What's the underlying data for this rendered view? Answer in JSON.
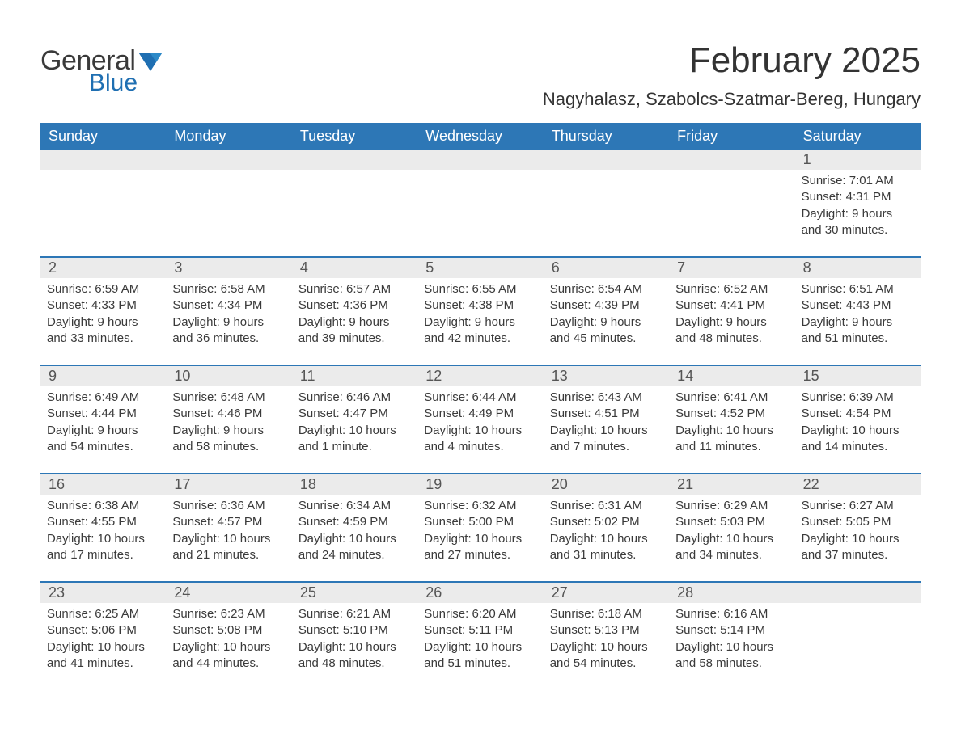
{
  "logo": {
    "text_general": "General",
    "text_blue": "Blue",
    "flag_color": "#1f6fb2"
  },
  "title": {
    "month": "February 2025",
    "location": "Nagyhalasz, Szabolcs-Szatmar-Bereg, Hungary"
  },
  "colors": {
    "header_bg": "#2d77b6",
    "header_text": "#ffffff",
    "daynum_bg": "#ebebeb",
    "sep": "#2d77b6",
    "body_text": "#3a3a3a"
  },
  "weekdays": [
    "Sunday",
    "Monday",
    "Tuesday",
    "Wednesday",
    "Thursday",
    "Friday",
    "Saturday"
  ],
  "weeks": [
    {
      "days": [
        null,
        null,
        null,
        null,
        null,
        null,
        {
          "n": "1",
          "sunrise": "Sunrise: 7:01 AM",
          "sunset": "Sunset: 4:31 PM",
          "dl1": "Daylight: 9 hours",
          "dl2": "and 30 minutes."
        }
      ]
    },
    {
      "days": [
        {
          "n": "2",
          "sunrise": "Sunrise: 6:59 AM",
          "sunset": "Sunset: 4:33 PM",
          "dl1": "Daylight: 9 hours",
          "dl2": "and 33 minutes."
        },
        {
          "n": "3",
          "sunrise": "Sunrise: 6:58 AM",
          "sunset": "Sunset: 4:34 PM",
          "dl1": "Daylight: 9 hours",
          "dl2": "and 36 minutes."
        },
        {
          "n": "4",
          "sunrise": "Sunrise: 6:57 AM",
          "sunset": "Sunset: 4:36 PM",
          "dl1": "Daylight: 9 hours",
          "dl2": "and 39 minutes."
        },
        {
          "n": "5",
          "sunrise": "Sunrise: 6:55 AM",
          "sunset": "Sunset: 4:38 PM",
          "dl1": "Daylight: 9 hours",
          "dl2": "and 42 minutes."
        },
        {
          "n": "6",
          "sunrise": "Sunrise: 6:54 AM",
          "sunset": "Sunset: 4:39 PM",
          "dl1": "Daylight: 9 hours",
          "dl2": "and 45 minutes."
        },
        {
          "n": "7",
          "sunrise": "Sunrise: 6:52 AM",
          "sunset": "Sunset: 4:41 PM",
          "dl1": "Daylight: 9 hours",
          "dl2": "and 48 minutes."
        },
        {
          "n": "8",
          "sunrise": "Sunrise: 6:51 AM",
          "sunset": "Sunset: 4:43 PM",
          "dl1": "Daylight: 9 hours",
          "dl2": "and 51 minutes."
        }
      ]
    },
    {
      "days": [
        {
          "n": "9",
          "sunrise": "Sunrise: 6:49 AM",
          "sunset": "Sunset: 4:44 PM",
          "dl1": "Daylight: 9 hours",
          "dl2": "and 54 minutes."
        },
        {
          "n": "10",
          "sunrise": "Sunrise: 6:48 AM",
          "sunset": "Sunset: 4:46 PM",
          "dl1": "Daylight: 9 hours",
          "dl2": "and 58 minutes."
        },
        {
          "n": "11",
          "sunrise": "Sunrise: 6:46 AM",
          "sunset": "Sunset: 4:47 PM",
          "dl1": "Daylight: 10 hours",
          "dl2": "and 1 minute."
        },
        {
          "n": "12",
          "sunrise": "Sunrise: 6:44 AM",
          "sunset": "Sunset: 4:49 PM",
          "dl1": "Daylight: 10 hours",
          "dl2": "and 4 minutes."
        },
        {
          "n": "13",
          "sunrise": "Sunrise: 6:43 AM",
          "sunset": "Sunset: 4:51 PM",
          "dl1": "Daylight: 10 hours",
          "dl2": "and 7 minutes."
        },
        {
          "n": "14",
          "sunrise": "Sunrise: 6:41 AM",
          "sunset": "Sunset: 4:52 PM",
          "dl1": "Daylight: 10 hours",
          "dl2": "and 11 minutes."
        },
        {
          "n": "15",
          "sunrise": "Sunrise: 6:39 AM",
          "sunset": "Sunset: 4:54 PM",
          "dl1": "Daylight: 10 hours",
          "dl2": "and 14 minutes."
        }
      ]
    },
    {
      "days": [
        {
          "n": "16",
          "sunrise": "Sunrise: 6:38 AM",
          "sunset": "Sunset: 4:55 PM",
          "dl1": "Daylight: 10 hours",
          "dl2": "and 17 minutes."
        },
        {
          "n": "17",
          "sunrise": "Sunrise: 6:36 AM",
          "sunset": "Sunset: 4:57 PM",
          "dl1": "Daylight: 10 hours",
          "dl2": "and 21 minutes."
        },
        {
          "n": "18",
          "sunrise": "Sunrise: 6:34 AM",
          "sunset": "Sunset: 4:59 PM",
          "dl1": "Daylight: 10 hours",
          "dl2": "and 24 minutes."
        },
        {
          "n": "19",
          "sunrise": "Sunrise: 6:32 AM",
          "sunset": "Sunset: 5:00 PM",
          "dl1": "Daylight: 10 hours",
          "dl2": "and 27 minutes."
        },
        {
          "n": "20",
          "sunrise": "Sunrise: 6:31 AM",
          "sunset": "Sunset: 5:02 PM",
          "dl1": "Daylight: 10 hours",
          "dl2": "and 31 minutes."
        },
        {
          "n": "21",
          "sunrise": "Sunrise: 6:29 AM",
          "sunset": "Sunset: 5:03 PM",
          "dl1": "Daylight: 10 hours",
          "dl2": "and 34 minutes."
        },
        {
          "n": "22",
          "sunrise": "Sunrise: 6:27 AM",
          "sunset": "Sunset: 5:05 PM",
          "dl1": "Daylight: 10 hours",
          "dl2": "and 37 minutes."
        }
      ]
    },
    {
      "days": [
        {
          "n": "23",
          "sunrise": "Sunrise: 6:25 AM",
          "sunset": "Sunset: 5:06 PM",
          "dl1": "Daylight: 10 hours",
          "dl2": "and 41 minutes."
        },
        {
          "n": "24",
          "sunrise": "Sunrise: 6:23 AM",
          "sunset": "Sunset: 5:08 PM",
          "dl1": "Daylight: 10 hours",
          "dl2": "and 44 minutes."
        },
        {
          "n": "25",
          "sunrise": "Sunrise: 6:21 AM",
          "sunset": "Sunset: 5:10 PM",
          "dl1": "Daylight: 10 hours",
          "dl2": "and 48 minutes."
        },
        {
          "n": "26",
          "sunrise": "Sunrise: 6:20 AM",
          "sunset": "Sunset: 5:11 PM",
          "dl1": "Daylight: 10 hours",
          "dl2": "and 51 minutes."
        },
        {
          "n": "27",
          "sunrise": "Sunrise: 6:18 AM",
          "sunset": "Sunset: 5:13 PM",
          "dl1": "Daylight: 10 hours",
          "dl2": "and 54 minutes."
        },
        {
          "n": "28",
          "sunrise": "Sunrise: 6:16 AM",
          "sunset": "Sunset: 5:14 PM",
          "dl1": "Daylight: 10 hours",
          "dl2": "and 58 minutes."
        },
        null
      ]
    }
  ]
}
